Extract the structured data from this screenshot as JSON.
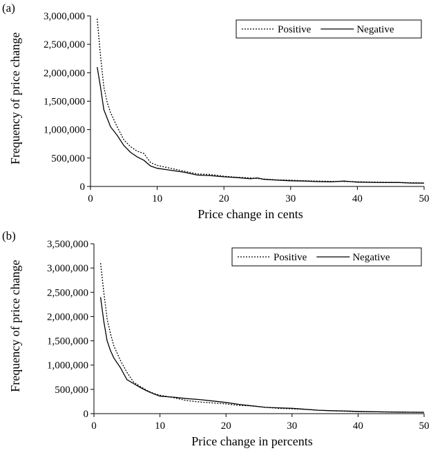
{
  "chart_data": [
    {
      "panel_label": "(a)",
      "type": "line",
      "xlabel": "Price change in cents",
      "ylabel": "Frequency of price change",
      "xlim": [
        0,
        50
      ],
      "ylim": [
        0,
        3000000
      ],
      "xticks": [
        0,
        10,
        20,
        30,
        40,
        50
      ],
      "xtick_labels": [
        "0",
        "10",
        "20",
        "30",
        "40",
        "50"
      ],
      "yticks": [
        0,
        500000,
        1000000,
        1500000,
        2000000,
        2500000,
        3000000
      ],
      "ytick_labels": [
        "0",
        "500,000",
        "1,000,000",
        "1,500,000",
        "2,000,000",
        "2,500,000",
        "3,000,000"
      ],
      "legend_position": "top-right",
      "series": [
        {
          "name": "Positive",
          "style": "dotted",
          "x": [
            1,
            1.5,
            2,
            2.5,
            3,
            4,
            5,
            6,
            7,
            8,
            9,
            10,
            12,
            14,
            16,
            18,
            20,
            22,
            24,
            25,
            26,
            28,
            30,
            32,
            34,
            36,
            38,
            40,
            42,
            44,
            46,
            48,
            50
          ],
          "y": [
            2950000,
            2300000,
            1750000,
            1480000,
            1300000,
            1050000,
            820000,
            700000,
            620000,
            580000,
            420000,
            370000,
            320000,
            270000,
            220000,
            210000,
            180000,
            160000,
            150000,
            140000,
            130000,
            115000,
            110000,
            100000,
            95000,
            90000,
            88000,
            82000,
            78000,
            74000,
            70000,
            66000,
            62000
          ]
        },
        {
          "name": "Negative",
          "style": "solid",
          "x": [
            1,
            1.5,
            2,
            2.5,
            3,
            4,
            5,
            6,
            7,
            8,
            9,
            10,
            12,
            14,
            16,
            18,
            20,
            22,
            24,
            25,
            26,
            28,
            30,
            32,
            34,
            36,
            38,
            40,
            42,
            44,
            46,
            48,
            50
          ],
          "y": [
            2100000,
            1750000,
            1350000,
            1200000,
            1050000,
            900000,
            720000,
            600000,
            520000,
            460000,
            360000,
            320000,
            285000,
            250000,
            200000,
            190000,
            170000,
            155000,
            135000,
            150000,
            125000,
            110000,
            100000,
            95000,
            85000,
            80000,
            95000,
            75000,
            72000,
            68000,
            70000,
            60000,
            58000
          ]
        }
      ]
    },
    {
      "panel_label": "(b)",
      "type": "line",
      "xlabel": "Price change in percents",
      "ylabel": "Frequency of price change",
      "xlim": [
        0,
        50
      ],
      "ylim": [
        0,
        3500000
      ],
      "xticks": [
        0,
        10,
        20,
        30,
        40,
        50
      ],
      "xtick_labels": [
        "0",
        "10",
        "20",
        "30",
        "40",
        "50"
      ],
      "yticks": [
        0,
        500000,
        1000000,
        1500000,
        2000000,
        2500000,
        3000000,
        3500000
      ],
      "ytick_labels": [
        "0",
        "500,000",
        "1,000,000",
        "1,500,000",
        "2,000,000",
        "2,500,000",
        "3,000,000",
        "3,500,000"
      ],
      "legend_position": "top-right",
      "series": [
        {
          "name": "Positive",
          "style": "dotted",
          "x": [
            1,
            1.5,
            2,
            2.5,
            3,
            4,
            5,
            6,
            7,
            8,
            9,
            10,
            12,
            14,
            16,
            18,
            20,
            22,
            24,
            26,
            28,
            30,
            32,
            34,
            36,
            38,
            40,
            42,
            44,
            46,
            48,
            50
          ],
          "y": [
            3100000,
            2500000,
            1950000,
            1650000,
            1400000,
            1100000,
            850000,
            650000,
            560000,
            480000,
            420000,
            380000,
            330000,
            270000,
            240000,
            220000,
            200000,
            170000,
            160000,
            130000,
            110000,
            100000,
            90000,
            70000,
            60000,
            50000,
            40000,
            38000,
            35000,
            30000,
            28000,
            25000
          ]
        },
        {
          "name": "Negative",
          "style": "solid",
          "x": [
            1,
            1.5,
            2,
            2.5,
            3,
            4,
            5,
            6,
            7,
            8,
            9,
            10,
            12,
            14,
            16,
            18,
            20,
            22,
            24,
            26,
            28,
            30,
            32,
            34,
            36,
            38,
            40,
            42,
            44,
            46,
            48,
            50
          ],
          "y": [
            2400000,
            1900000,
            1500000,
            1300000,
            1150000,
            950000,
            700000,
            620000,
            540000,
            470000,
            410000,
            360000,
            340000,
            310000,
            290000,
            260000,
            230000,
            190000,
            160000,
            130000,
            120000,
            110000,
            90000,
            70000,
            60000,
            55000,
            45000,
            40000,
            35000,
            33000,
            30000,
            28000
          ]
        }
      ]
    }
  ]
}
